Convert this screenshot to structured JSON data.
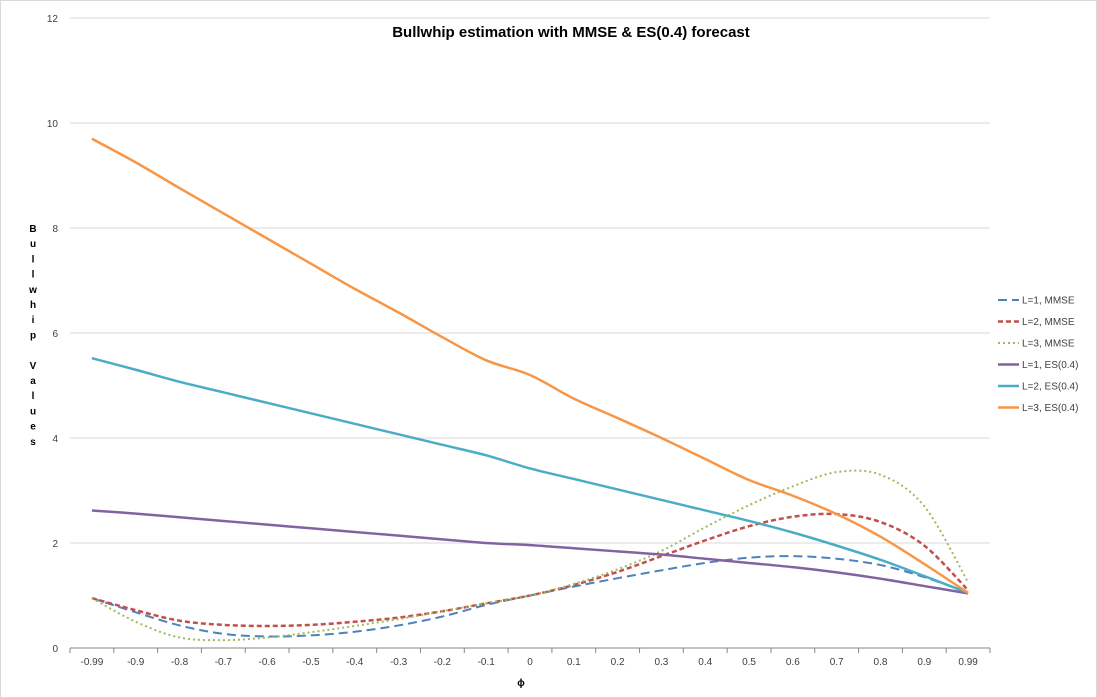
{
  "chart_data": {
    "type": "line",
    "title": "Bullwhip estimation with   MMSE & ES(0.4) forecast",
    "xlabel": "ϕ",
    "ylabel": "Bullwhip Values",
    "x": [
      -0.99,
      -0.9,
      -0.8,
      -0.7,
      -0.6,
      -0.5,
      -0.4,
      -0.3,
      -0.2,
      -0.1,
      0,
      0.1,
      0.2,
      0.3,
      0.4,
      0.5,
      0.6,
      0.7,
      0.8,
      0.9,
      0.99
    ],
    "x_tick_labels": [
      "-0.99",
      "-0.9",
      "-0.8",
      "-0.7",
      "-0.6",
      "-0.5",
      "-0.4",
      "-0.3",
      "-0.2",
      "-0.1",
      "0",
      "0.1",
      "0.2",
      "0.3",
      "0.4",
      "0.5",
      "0.6",
      "0.7",
      "0.8",
      "0.9",
      "0.99"
    ],
    "ylim": [
      0,
      12
    ],
    "y_ticks": [
      0,
      2,
      4,
      6,
      8,
      10,
      12
    ],
    "grid": "horizontal",
    "legend_position": "right",
    "series": [
      {
        "name": "L=1, MMSE",
        "color": "#4f81bd",
        "dash": "9,5",
        "width": 2,
        "values": [
          0.95,
          0.68,
          0.43,
          0.27,
          0.22,
          0.24,
          0.31,
          0.43,
          0.6,
          0.82,
          1.0,
          1.17,
          1.33,
          1.48,
          1.62,
          1.72,
          1.75,
          1.7,
          1.58,
          1.35,
          1.05
        ]
      },
      {
        "name": "L=2, MMSE",
        "color": "#c0504d",
        "dash": "5,3",
        "width": 2.5,
        "values": [
          0.95,
          0.72,
          0.52,
          0.44,
          0.42,
          0.44,
          0.5,
          0.58,
          0.7,
          0.85,
          1.0,
          1.2,
          1.45,
          1.75,
          2.05,
          2.32,
          2.5,
          2.55,
          2.4,
          1.95,
          1.1
        ]
      },
      {
        "name": "L=3, MMSE",
        "color": "#9bbb59",
        "dash": "2,3",
        "width": 2,
        "values": [
          0.95,
          0.5,
          0.2,
          0.15,
          0.2,
          0.3,
          0.42,
          0.55,
          0.7,
          0.85,
          1.0,
          1.22,
          1.5,
          1.85,
          2.3,
          2.72,
          3.08,
          3.35,
          3.3,
          2.7,
          1.25
        ]
      },
      {
        "name": "L=1, ES(0.4)",
        "color": "#8064a2",
        "dash": "",
        "width": 2.5,
        "values": [
          2.62,
          2.56,
          2.49,
          2.42,
          2.35,
          2.28,
          2.21,
          2.14,
          2.07,
          2.0,
          1.96,
          1.9,
          1.84,
          1.78,
          1.7,
          1.62,
          1.54,
          1.44,
          1.32,
          1.18,
          1.04
        ]
      },
      {
        "name": "L=2, ES(0.4)",
        "color": "#4bacc6",
        "dash": "",
        "width": 2.5,
        "values": [
          5.52,
          5.3,
          5.07,
          4.87,
          4.67,
          4.47,
          4.27,
          4.07,
          3.87,
          3.67,
          3.42,
          3.22,
          3.02,
          2.82,
          2.62,
          2.42,
          2.2,
          1.95,
          1.68,
          1.37,
          1.05
        ]
      },
      {
        "name": "L=3, ES(0.4)",
        "color": "#f79646",
        "dash": "",
        "width": 2.5,
        "values": [
          9.7,
          9.25,
          8.76,
          8.28,
          7.8,
          7.32,
          6.84,
          6.39,
          5.92,
          5.48,
          5.2,
          4.75,
          4.38,
          4.0,
          3.6,
          3.2,
          2.9,
          2.55,
          2.12,
          1.6,
          1.05
        ]
      }
    ]
  }
}
